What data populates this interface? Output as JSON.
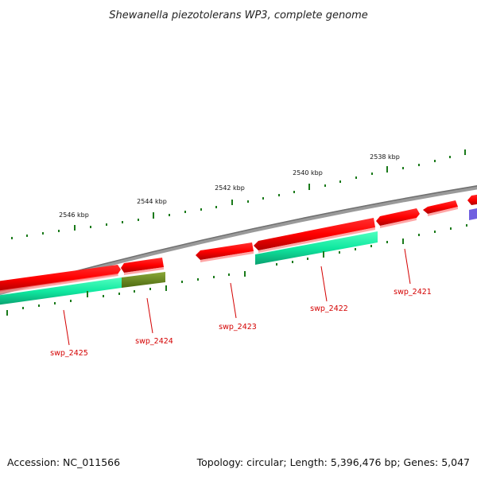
{
  "title": "Shewanella piezotolerans WP3, complete genome",
  "footer": {
    "accession": "Accession: NC_011566",
    "summary": "Topology: circular; Length: 5,396,476 bp; Genes: 5,047"
  },
  "scale_labels": [
    "2546 kbp",
    "2544 kbp",
    "2542 kbp",
    "2540 kbp",
    "2538 kbp"
  ],
  "gene_labels": [
    "swp_2425",
    "swp_2424",
    "swp_2423",
    "swp_2422",
    "swp_2421"
  ],
  "colors": {
    "backbone": "#7f7f7f",
    "gene": "#ff0000",
    "gene_dark": "#c00000",
    "cds_green": "#10e8a0",
    "cds_olive": "#6b8c1e",
    "purple": "#7060e0",
    "tick": "#1a7a1a",
    "label": "#d40000"
  }
}
